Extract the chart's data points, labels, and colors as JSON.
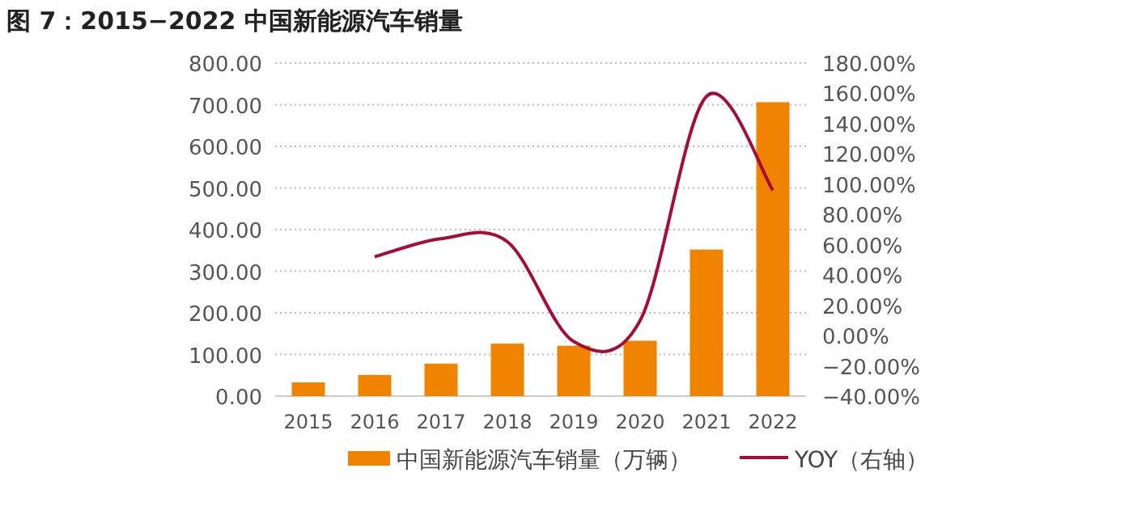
{
  "chart_data": {
    "type": "bar",
    "title": "图 7：2015−2022 中国新能源汽车销量",
    "categories": [
      "2015",
      "2016",
      "2017",
      "2018",
      "2019",
      "2020",
      "2021",
      "2022"
    ],
    "series": [
      {
        "name": "中国新能源汽车销量（万辆）",
        "color": "#f08300",
        "values": [
          33,
          51,
          78,
          126,
          121,
          133,
          352,
          706
        ]
      },
      {
        "name": "YOY（右轴）",
        "type": "line",
        "axis": "y2",
        "color": "#a50d37",
        "values": [
          null,
          52,
          64,
          62,
          -4,
          10,
          158,
          96
        ]
      }
    ],
    "ylim": [
      0,
      800
    ],
    "yticks": [
      {
        "value": 0,
        "label": "0.00"
      },
      {
        "value": 100,
        "label": "100.00"
      },
      {
        "value": 200,
        "label": "200.00"
      },
      {
        "value": 300,
        "label": "300.00"
      },
      {
        "value": 400,
        "label": "400.00"
      },
      {
        "value": 500,
        "label": "500.00"
      },
      {
        "value": 600,
        "label": "600.00"
      },
      {
        "value": 700,
        "label": "700.00"
      },
      {
        "value": 800,
        "label": "800.00"
      }
    ],
    "y2lim": [
      -40,
      180
    ],
    "y2ticks": [
      {
        "value": -40,
        "label": "−40.00%"
      },
      {
        "value": -20,
        "label": "−20.00%"
      },
      {
        "value": 0,
        "label": "0.00%"
      },
      {
        "value": 20,
        "label": "20.00%"
      },
      {
        "value": 40,
        "label": "40.00%"
      },
      {
        "value": 60,
        "label": "60.00%"
      },
      {
        "value": 80,
        "label": "80.00%"
      },
      {
        "value": 100,
        "label": "100.00%"
      },
      {
        "value": 120,
        "label": "120.00%"
      },
      {
        "value": 140,
        "label": "140.00%"
      },
      {
        "value": 160,
        "label": "160.00%"
      },
      {
        "value": 180,
        "label": "180.00%"
      }
    ],
    "grid": "y",
    "legend": "bottom"
  }
}
